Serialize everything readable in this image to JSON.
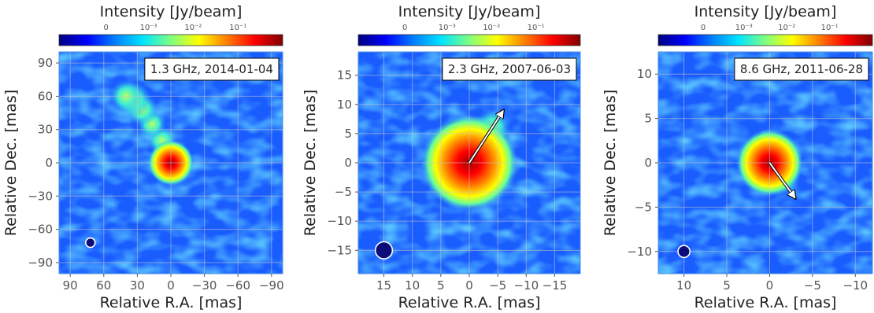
{
  "colorbar_colors": [
    "#00007f",
    "#0000ff",
    "#007fff",
    "#00e5ff",
    "#7fff7f",
    "#ffff00",
    "#ff7f00",
    "#ff0000",
    "#7f0000"
  ],
  "chart_data": [
    {
      "type": "heatmap",
      "title": "1.3 GHz, 2014-01-04",
      "xlabel": "Relative R.A. [mas]",
      "ylabel": "Relative Dec. [mas]",
      "xlim": [
        100,
        -100
      ],
      "ylim": [
        -100,
        100
      ],
      "xticks": [
        90,
        60,
        30,
        0,
        -30,
        -60,
        -90
      ],
      "yticks": [
        -90,
        -60,
        -30,
        0,
        30,
        60,
        90
      ],
      "xtick_labels": [
        "90",
        "60",
        "30",
        "0",
        "−30",
        "−60",
        "−90"
      ],
      "ytick_labels": [
        "−90",
        "−60",
        "−30",
        "0",
        "30",
        "60",
        "90"
      ],
      "colorbar_label": "Intensity [Jy/beam]",
      "colorbar_ticks": [
        "0",
        "10⁻³",
        "10⁻²",
        "10⁻¹"
      ],
      "grid": true,
      "beam": {
        "x": 72,
        "y": -72,
        "radius": 4
      },
      "core": {
        "x": 0,
        "y": 0,
        "radius": 12
      },
      "jet_knots": [
        {
          "x": 8,
          "y": 20,
          "radius": 8
        },
        {
          "x": 17,
          "y": 35,
          "radius": 8
        },
        {
          "x": 26,
          "y": 48,
          "radius": 9
        },
        {
          "x": 34,
          "y": 57,
          "radius": 10
        },
        {
          "x": 40,
          "y": 60,
          "radius": 9
        }
      ],
      "arrow": null
    },
    {
      "type": "heatmap",
      "title": "2.3 GHz, 2007-06-03",
      "xlabel": "Relative R.A. [mas]",
      "ylabel": "Relative Dec. [mas]",
      "xlim": [
        19.5,
        -19.5
      ],
      "ylim": [
        -19,
        19
      ],
      "xticks": [
        15,
        10,
        5,
        0,
        -5,
        -10,
        -15
      ],
      "yticks": [
        -15,
        -10,
        -5,
        0,
        5,
        10,
        15
      ],
      "xtick_labels": [
        "15",
        "10",
        "5",
        "0",
        "−5",
        "−10",
        "−15"
      ],
      "ytick_labels": [
        "−15",
        "−10",
        "−5",
        "0",
        "5",
        "10",
        "15"
      ],
      "colorbar_label": "Intensity [Jy/beam]",
      "colorbar_ticks": [
        "0",
        "10⁻³",
        "10⁻²",
        "10⁻¹"
      ],
      "grid": true,
      "beam": {
        "x": 15,
        "y": -15,
        "radius": 1.5
      },
      "core": {
        "x": 0,
        "y": 0,
        "radius": 5
      },
      "jet_knots": [
        {
          "x": -2,
          "y": 4,
          "radius": 2.5
        },
        {
          "x": -4,
          "y": 6,
          "radius": 2
        }
      ],
      "arrow": {
        "x": -6,
        "y": 9
      }
    },
    {
      "type": "heatmap",
      "title": "8.6 GHz, 2011-06-28",
      "xlabel": "Relative R.A. [mas]",
      "ylabel": "Relative Dec. [mas]",
      "xlim": [
        13,
        -12
      ],
      "ylim": [
        -12.5,
        12.5
      ],
      "xticks": [
        10,
        5,
        0,
        -5,
        -10
      ],
      "yticks": [
        -10,
        -5,
        0,
        5,
        10
      ],
      "xtick_labels": [
        "10",
        "5",
        "0",
        "−5",
        "−10"
      ],
      "ytick_labels": [
        "−10",
        "−5",
        "0",
        "5",
        "10"
      ],
      "colorbar_label": "Intensity [Jy/beam]",
      "colorbar_ticks": [
        "0",
        "10⁻³",
        "10⁻²",
        "10⁻¹"
      ],
      "grid": true,
      "beam": {
        "x": 10,
        "y": -10,
        "radius": 0.7
      },
      "core": {
        "x": 0,
        "y": 0,
        "radius": 2.3
      },
      "jet_knots": [
        {
          "x": -1.5,
          "y": -1.5,
          "radius": 1.3
        },
        {
          "x": 1,
          "y": 0.8,
          "radius": 1
        }
      ],
      "arrow": {
        "x": -3,
        "y": -4
      }
    }
  ]
}
